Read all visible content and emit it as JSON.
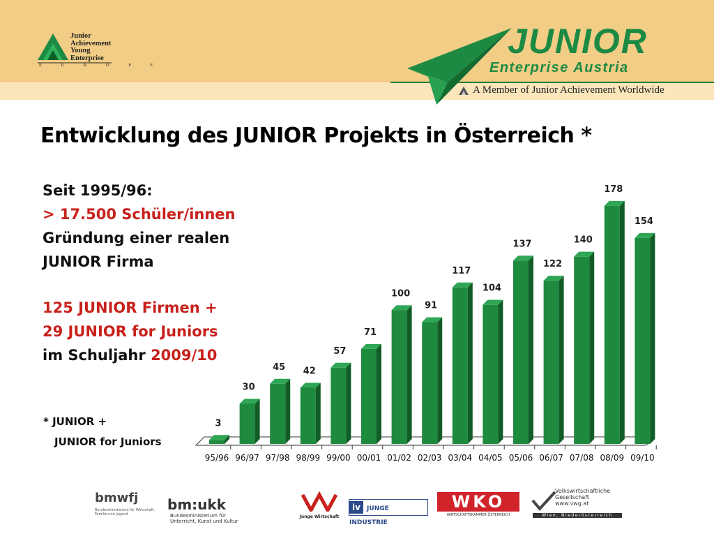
{
  "header": {
    "ja_logo": {
      "lines": [
        "Junior",
        "Achievement",
        "Young",
        "Enterprise"
      ],
      "region": "E U R O P E"
    },
    "junior_logo": {
      "name": "JUNIOR",
      "subtitle": "Enterprise Austria"
    },
    "member_text": "A Member of Junior Achievement Worldwide",
    "colors": {
      "header_bg": "#f2cd86",
      "brand_green": "#1d8a44"
    }
  },
  "title": "Entwicklung des JUNIOR Projekts in Österreich *",
  "side_text": {
    "line1": "Seit 1995/96:",
    "line2": "> 17.500 Schüler/innen",
    "line3": "Gründung einer realen",
    "line4": "JUNIOR Firma",
    "line5": "125 JUNIOR Firmen +",
    "line6": "29 JUNIOR for Juniors",
    "line7_prefix": "im Schuljahr ",
    "line7_year": "2009/10"
  },
  "footnote": {
    "line1": "* JUNIOR +",
    "line2": "JUNIOR for Juniors"
  },
  "chart_data": {
    "type": "bar",
    "categories": [
      "95/96",
      "96/97",
      "97/98",
      "98/99",
      "99/00",
      "00/01",
      "01/02",
      "02/03",
      "03/04",
      "04/05",
      "05/06",
      "06/07",
      "07/08",
      "08/09",
      "09/10"
    ],
    "values": [
      3,
      30,
      45,
      42,
      57,
      71,
      100,
      91,
      117,
      104,
      137,
      122,
      140,
      178,
      154
    ],
    "ylim": [
      0,
      180
    ],
    "title": "",
    "xlabel": "",
    "ylabel": "",
    "grid": false,
    "colors": {
      "bar_front": "#1e8a3e",
      "bar_side": "#125c27",
      "bar_top": "#2fa655",
      "floor": "#ffffff"
    }
  },
  "sponsors": {
    "bmwfj": {
      "logo": "bmwfj",
      "caption": "Bundesministerium für Wirtschaft, Familie und Jugend"
    },
    "bmukk": {
      "logo": "bm:ukk",
      "caption": "Bundesministerium für Unterricht, Kunst und Kultur"
    },
    "jw": {
      "caption": "Junge Wirtschaft"
    },
    "iv": {
      "logo": "iv",
      "caption": "JUNGE INDUSTRIE"
    },
    "wko": {
      "logo": "WKO",
      "caption": "WIRTSCHAFTSKAMMER ÖSTERREICH"
    },
    "vwg": {
      "line1": "Volkswirtschaftliche",
      "line2": "Gesellschaft",
      "url": "www.vwg.at",
      "footer": "Wien, Niederösterreich"
    }
  }
}
